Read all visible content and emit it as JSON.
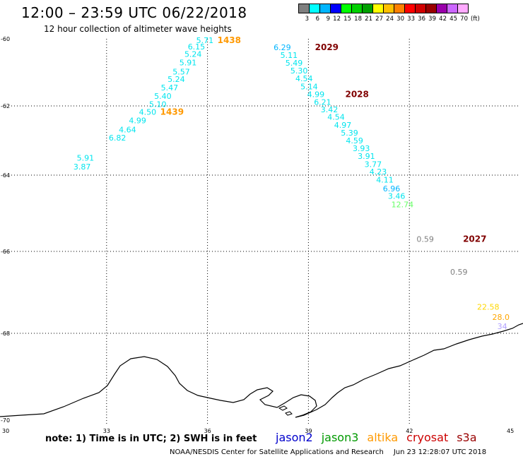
{
  "header": {
    "title": "12:00 – 23:59 UTC 06/22/2018",
    "subtitle": "12 hour collection of altimeter wave heights"
  },
  "legend": {
    "colors": [
      "#7f7f7f",
      "#00ffff",
      "#00b5ff",
      "#0000ff",
      "#00ff00",
      "#00d000",
      "#00a000",
      "#ffff00",
      "#ffc000",
      "#ff8000",
      "#ff0000",
      "#d00000",
      "#990000",
      "#9900aa",
      "#cc66ff",
      "#ffaaff"
    ],
    "labels": [
      "3",
      "6",
      "9",
      "12",
      "15",
      "18",
      "21",
      "27",
      "24",
      "30",
      "33",
      "36",
      "39",
      "42",
      "45",
      "70"
    ],
    "unit": "(ft)"
  },
  "axes": {
    "x_ticks": [
      "30",
      "33",
      "36",
      "39",
      "42",
      "45"
    ],
    "y_ticks": [
      "-60",
      "-62",
      "-64",
      "-66",
      "-68",
      "-70"
    ]
  },
  "observations": [
    {
      "t": "5.71",
      "c": "#00e5ee",
      "x": 36.0,
      "y": -60.04
    },
    {
      "t": "6.15",
      "c": "#00e5ee",
      "x": 35.75,
      "y": -60.23
    },
    {
      "t": "5.24",
      "c": "#00e5ee",
      "x": 35.65,
      "y": -60.45
    },
    {
      "t": "5.91",
      "c": "#00e5ee",
      "x": 35.5,
      "y": -60.7
    },
    {
      "t": "5.57",
      "c": "#00e5ee",
      "x": 35.3,
      "y": -60.98
    },
    {
      "t": "5.24",
      "c": "#00e5ee",
      "x": 35.15,
      "y": -61.2
    },
    {
      "t": "5.47",
      "c": "#00e5ee",
      "x": 34.95,
      "y": -61.45
    },
    {
      "t": "5.40",
      "c": "#00e5ee",
      "x": 34.75,
      "y": -61.7
    },
    {
      "t": "5.10",
      "c": "#00e5ee",
      "x": 34.6,
      "y": -61.95
    },
    {
      "t": "4.50",
      "c": "#00e5ee",
      "x": 34.3,
      "y": -62.17
    },
    {
      "t": "4.99",
      "c": "#00e5ee",
      "x": 34.0,
      "y": -62.42
    },
    {
      "t": "4.64",
      "c": "#00e5ee",
      "x": 33.7,
      "y": -62.68
    },
    {
      "t": "6.82",
      "c": "#00e5ee",
      "x": 33.4,
      "y": -62.92
    },
    {
      "t": "5.91",
      "c": "#00e5ee",
      "x": 32.45,
      "y": -63.5
    },
    {
      "t": "3.87",
      "c": "#00e5ee",
      "x": 32.35,
      "y": -63.75
    },
    {
      "t": "6.29",
      "c": "#00b5ff",
      "x": 38.3,
      "y": -60.25
    },
    {
      "t": "5.11",
      "c": "#00e5ee",
      "x": 38.5,
      "y": -60.48
    },
    {
      "t": "5.49",
      "c": "#00e5ee",
      "x": 38.65,
      "y": -60.72
    },
    {
      "t": "5.30",
      "c": "#00e5ee",
      "x": 38.8,
      "y": -60.95
    },
    {
      "t": "4.54",
      "c": "#00e5ee",
      "x": 38.95,
      "y": -61.18
    },
    {
      "t": "5.14",
      "c": "#00e5ee",
      "x": 39.1,
      "y": -61.42
    },
    {
      "t": "4.99",
      "c": "#00e5ee",
      "x": 39.3,
      "y": -61.65
    },
    {
      "t": "6.21",
      "c": "#00e5ee",
      "x": 39.5,
      "y": -61.88
    },
    {
      "t": "3.42",
      "c": "#00e5ee",
      "x": 39.7,
      "y": -62.1
    },
    {
      "t": "4.54",
      "c": "#00e5ee",
      "x": 39.9,
      "y": -62.32
    },
    {
      "t": "4.97",
      "c": "#00e5ee",
      "x": 40.1,
      "y": -62.55
    },
    {
      "t": "5.39",
      "c": "#00e5ee",
      "x": 40.3,
      "y": -62.78
    },
    {
      "t": "4.59",
      "c": "#00e5ee",
      "x": 40.45,
      "y": -63.0
    },
    {
      "t": "3.93",
      "c": "#00e5ee",
      "x": 40.65,
      "y": -63.22
    },
    {
      "t": "3.91",
      "c": "#00e5ee",
      "x": 40.8,
      "y": -63.45
    },
    {
      "t": "3.77",
      "c": "#00e5ee",
      "x": 41.0,
      "y": -63.68
    },
    {
      "t": "4.23",
      "c": "#00e5ee",
      "x": 41.15,
      "y": -63.9
    },
    {
      "t": "4.11",
      "c": "#00e5ee",
      "x": 41.35,
      "y": -64.12
    },
    {
      "t": "6.96",
      "c": "#00b5ff",
      "x": 41.55,
      "y": -64.35
    },
    {
      "t": "3.46",
      "c": "#00e5ee",
      "x": 41.7,
      "y": -64.55
    },
    {
      "t": "12.74",
      "c": "#66ff66",
      "x": 41.8,
      "y": -64.77
    },
    {
      "t": "0.59",
      "c": "#7f7f7f",
      "x": 42.55,
      "y": -65.68
    },
    {
      "t": "0.59",
      "c": "#7f7f7f",
      "x": 43.55,
      "y": -66.5
    },
    {
      "t": "22.58",
      "c": "#ffd700",
      "x": 44.35,
      "y": -67.35
    },
    {
      "t": "28.0",
      "c": "#ffa500",
      "x": 44.8,
      "y": -67.6
    },
    {
      "t": "34",
      "c": "#b0a0ff",
      "x": 44.95,
      "y": -67.83
    }
  ],
  "pass_labels": [
    {
      "t": "1438",
      "c": "#ff9900",
      "x": 36.0,
      "y": -60.04
    },
    {
      "t": "1439",
      "c": "#ff9900",
      "x": 34.3,
      "y": -62.17
    },
    {
      "t": "2029",
      "c": "#800000",
      "x": 38.9,
      "y": -60.25
    },
    {
      "t": "2028",
      "c": "#800000",
      "x": 39.8,
      "y": -61.65
    },
    {
      "t": "2027",
      "c": "#800000",
      "x": 43.3,
      "y": -65.68
    }
  ],
  "note": "note: 1) Time is in UTC; 2) SWH is in feet",
  "satellites": [
    {
      "name": "jason2",
      "color": "#0000cc"
    },
    {
      "name": "jason3",
      "color": "#009900"
    },
    {
      "name": "altika",
      "color": "#ff9900"
    },
    {
      "name": "cryosat",
      "color": "#cc0000"
    },
    {
      "name": "s3a",
      "color": "#990000"
    }
  ],
  "credit": "NOAA/NESDIS Center for Satellite Applications and Research",
  "timestamp": "Jun 23 12:28:07 UTC 2018"
}
